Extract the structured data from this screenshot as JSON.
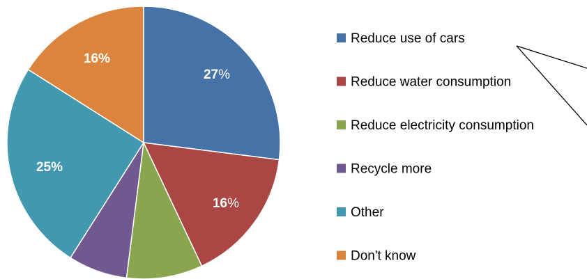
{
  "chart_data": {
    "type": "pie",
    "slices": [
      {
        "name": "Reduce use of cars",
        "value": 27,
        "label_num": "27",
        "label_pct": "%",
        "color": "#4572A7"
      },
      {
        "name": "Reduce water consumption",
        "value": 16,
        "label_num": "16",
        "label_pct": "%",
        "color": "#AA4643"
      },
      {
        "name": "Reduce electricity consumption",
        "value": 9,
        "label_num": "",
        "label_pct": "",
        "color": "#89A54E"
      },
      {
        "name": "Recycle more",
        "value": 7,
        "label_num": "",
        "label_pct": "",
        "color": "#71588F"
      },
      {
        "name": "Other",
        "value": 25,
        "label_num": "25%",
        "label_pct": "",
        "color": "#4198AF"
      },
      {
        "name": "Don't know",
        "value": 16,
        "label_num": "16%",
        "label_pct": "",
        "color": "#DB843D"
      }
    ],
    "legend_position": "right"
  }
}
